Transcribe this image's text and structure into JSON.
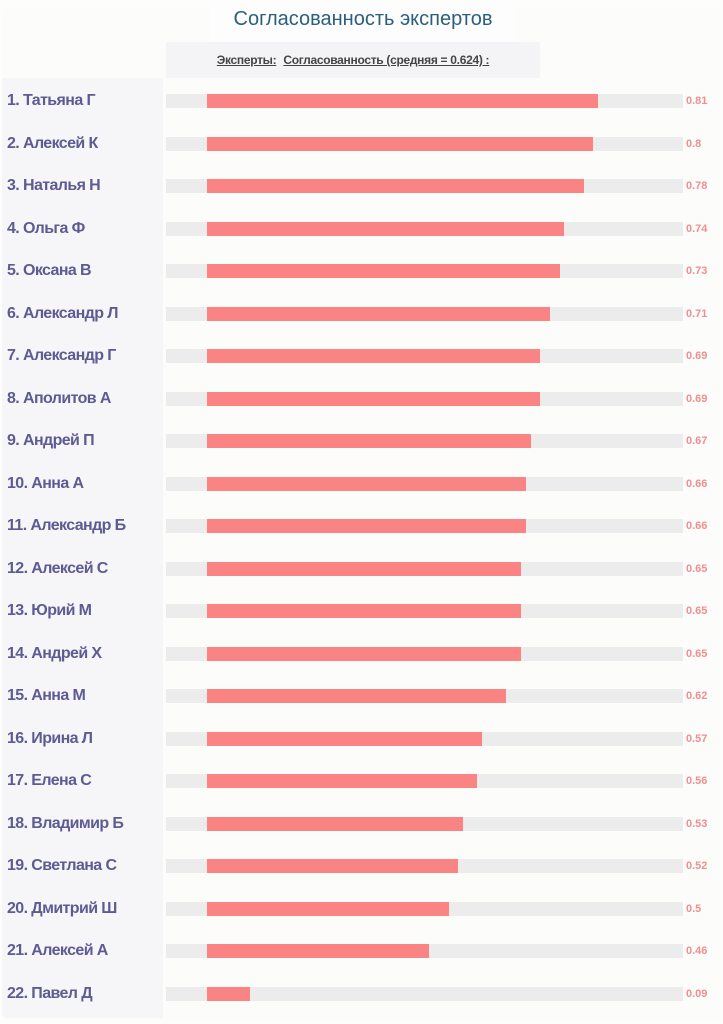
{
  "title": "Согласованность экспертов",
  "header": {
    "experts_label": "Эксперты:",
    "agreement_label": "Согласованность (средняя = 0.624) :"
  },
  "chart_data": {
    "type": "bar",
    "orientation": "horizontal",
    "title": "Согласованность экспертов",
    "mean": 0.624,
    "xlim": [
      0,
      1
    ],
    "bar_color": "#fa8383",
    "track_color": "#ececec",
    "categories": [
      "1. Татьяна Г",
      "2. Алексей К",
      "3. Наталья Н",
      "4. Ольга Ф",
      "5. Оксана В",
      "6. Александр Л",
      "7. Александр Г",
      "8. Аполитов А",
      "9. Андрей П",
      "10. Анна А",
      "11. Александр Б",
      "12. Алексей С",
      "13. Юрий М",
      "14. Андрей Х",
      "15. Анна М",
      "16. Ирина Л",
      "17. Елена С",
      "18. Владимир Б",
      "19. Светлана С",
      "20. Дмитрий Ш",
      "21. Алексей А",
      "22. Павел Д"
    ],
    "values": [
      0.81,
      0.8,
      0.78,
      0.74,
      0.73,
      0.71,
      0.69,
      0.69,
      0.67,
      0.66,
      0.66,
      0.65,
      0.65,
      0.65,
      0.62,
      0.57,
      0.56,
      0.53,
      0.52,
      0.5,
      0.46,
      0.09
    ],
    "labels": [
      "0.81",
      "0.8",
      "0.78",
      "0.74",
      "0.73",
      "0.71",
      "0.69",
      "0.69",
      "0.67",
      "0.66",
      "0.66",
      "0.65",
      "0.65",
      "0.65",
      "0.62",
      "0.57",
      "0.56",
      "0.53",
      "0.52",
      "0.5",
      "0.46",
      "0.09"
    ]
  }
}
